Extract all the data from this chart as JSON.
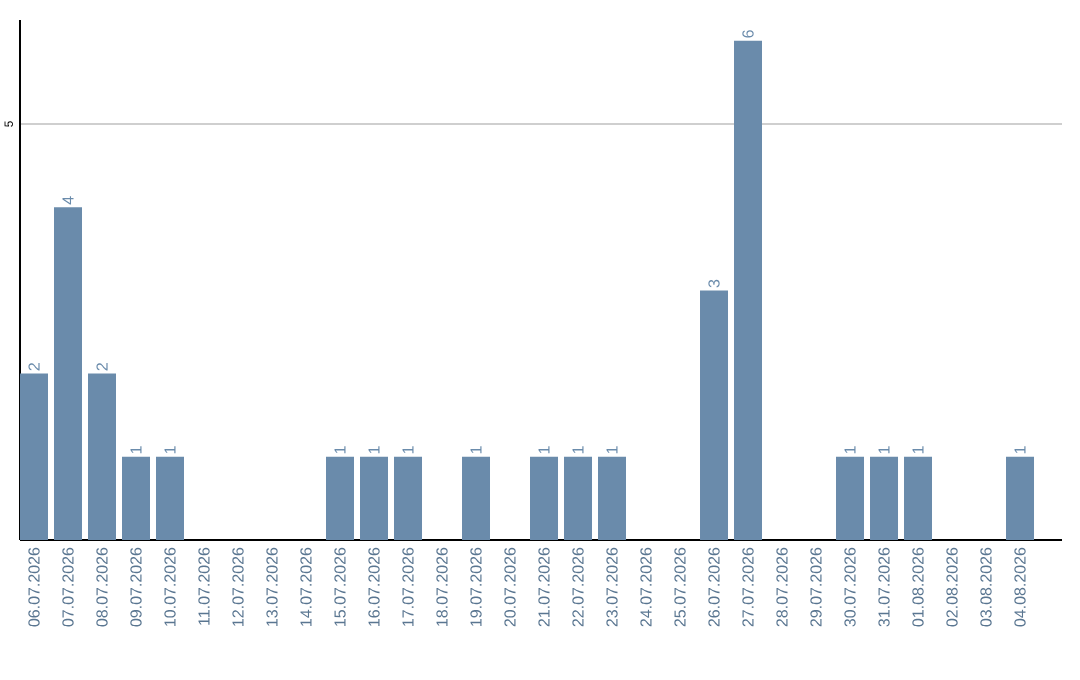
{
  "chart_data": {
    "type": "bar",
    "categories": [
      "06.07.2026",
      "07.07.2026",
      "08.07.2026",
      "09.07.2026",
      "10.07.2026",
      "11.07.2026",
      "12.07.2026",
      "13.07.2026",
      "14.07.2026",
      "15.07.2026",
      "16.07.2026",
      "17.07.2026",
      "18.07.2026",
      "19.07.2026",
      "20.07.2026",
      "21.07.2026",
      "22.07.2026",
      "23.07.2026",
      "24.07.2026",
      "25.07.2026",
      "26.07.2026",
      "27.07.2026",
      "28.07.2026",
      "29.07.2026",
      "30.07.2026",
      "31.07.2026",
      "01.08.2026",
      "02.08.2026",
      "03.08.2026",
      "04.08.2026"
    ],
    "values": [
      2,
      4,
      2,
      1,
      1,
      0,
      0,
      0,
      0,
      1,
      1,
      1,
      0,
      1,
      0,
      1,
      1,
      1,
      0,
      0,
      3,
      6,
      0,
      0,
      1,
      1,
      1,
      0,
      0,
      1
    ],
    "value_labels": [
      "2",
      "4",
      "2",
      "1",
      "1",
      null,
      null,
      null,
      null,
      "1",
      "1",
      "1",
      null,
      "1",
      null,
      "1",
      "1",
      "1",
      null,
      null,
      "3",
      "6",
      null,
      null,
      "1",
      "1",
      "1",
      null,
      null,
      "1"
    ],
    "color": "#6a8bab",
    "ylim": [
      0,
      6.25
    ],
    "yticks": [
      5
    ],
    "grid": "y"
  }
}
